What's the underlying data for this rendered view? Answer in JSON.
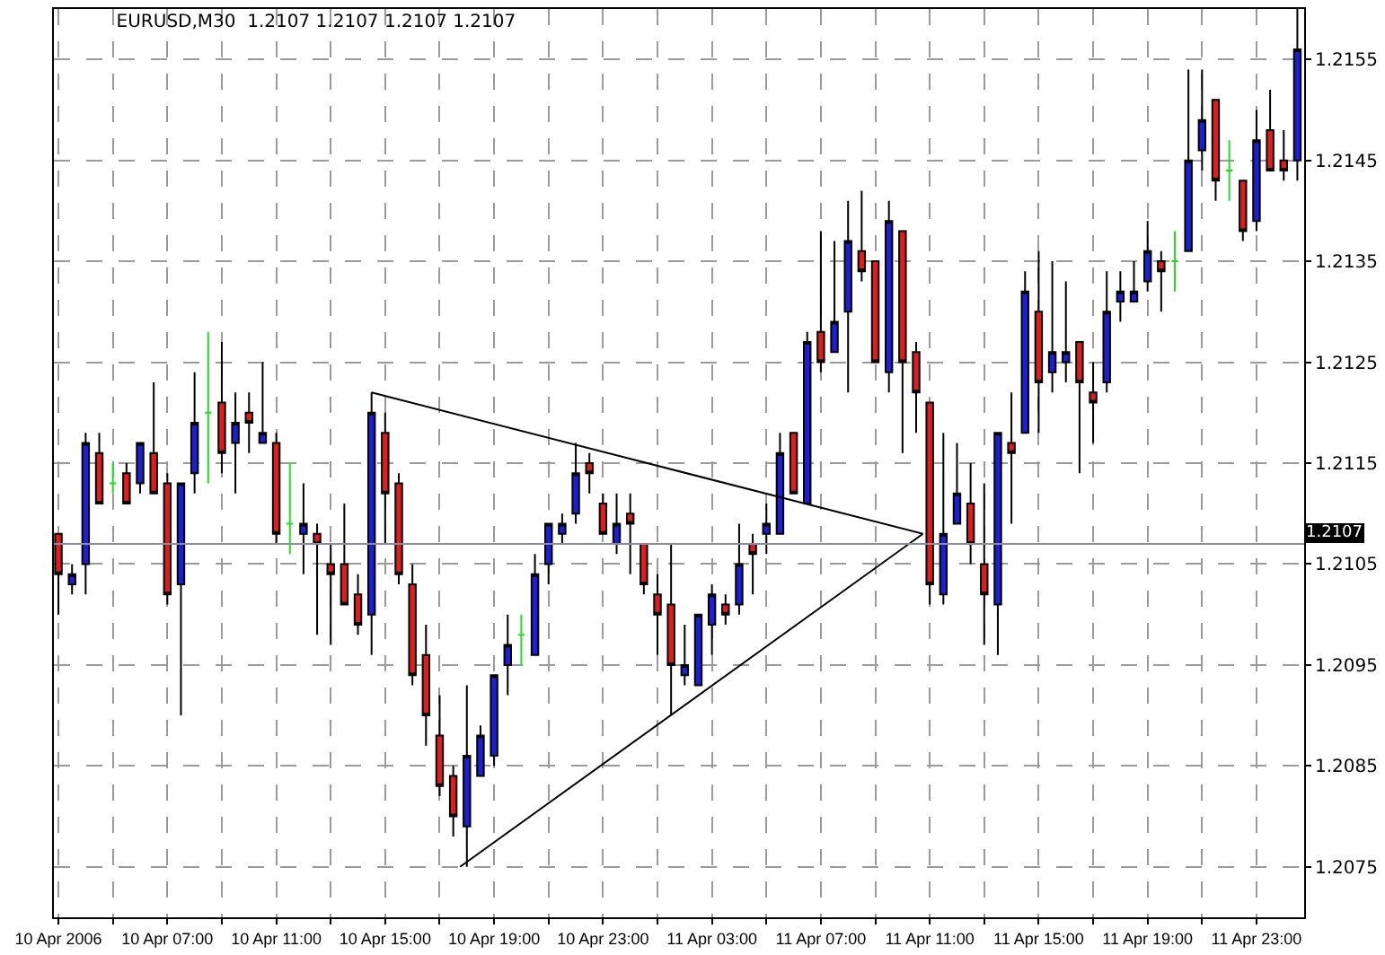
{
  "chart_data": {
    "type": "candlestick",
    "title": "EURUSD,M30  1.2107 1.2107 1.2107 1.2107",
    "x": [
      "2006-04-10T03:00",
      "2006-04-10T03:30",
      "2006-04-10T04:00",
      "2006-04-10T04:30",
      "2006-04-10T05:00",
      "2006-04-10T05:30",
      "2006-04-10T06:00",
      "2006-04-10T06:30",
      "2006-04-10T07:00",
      "2006-04-10T07:30",
      "2006-04-10T08:00",
      "2006-04-10T08:30",
      "2006-04-10T09:00",
      "2006-04-10T09:30",
      "2006-04-10T10:00",
      "2006-04-10T10:30",
      "2006-04-10T11:00",
      "2006-04-10T11:30",
      "2006-04-10T12:00",
      "2006-04-10T12:30",
      "2006-04-10T13:00",
      "2006-04-10T13:30",
      "2006-04-10T14:00",
      "2006-04-10T14:30",
      "2006-04-10T15:00",
      "2006-04-10T15:30",
      "2006-04-10T16:00",
      "2006-04-10T16:30",
      "2006-04-10T17:00",
      "2006-04-10T17:30",
      "2006-04-10T18:00",
      "2006-04-10T18:30",
      "2006-04-10T19:00",
      "2006-04-10T19:30",
      "2006-04-10T20:00",
      "2006-04-10T20:30",
      "2006-04-10T21:00",
      "2006-04-10T21:30",
      "2006-04-10T22:00",
      "2006-04-10T22:30",
      "2006-04-10T23:00",
      "2006-04-10T23:30",
      "2006-04-11T00:00",
      "2006-04-11T00:30",
      "2006-04-11T01:00",
      "2006-04-11T01:30",
      "2006-04-11T02:00",
      "2006-04-11T02:30",
      "2006-04-11T03:00",
      "2006-04-11T03:30",
      "2006-04-11T04:00",
      "2006-04-11T04:30",
      "2006-04-11T05:00",
      "2006-04-11T05:30",
      "2006-04-11T06:00",
      "2006-04-11T06:30",
      "2006-04-11T07:00",
      "2006-04-11T07:30",
      "2006-04-11T08:00",
      "2006-04-11T08:30",
      "2006-04-11T09:00",
      "2006-04-11T09:30",
      "2006-04-11T10:00",
      "2006-04-11T10:30",
      "2006-04-11T11:00",
      "2006-04-11T11:30",
      "2006-04-11T12:00",
      "2006-04-11T12:30",
      "2006-04-11T13:00",
      "2006-04-11T13:30",
      "2006-04-11T14:00",
      "2006-04-11T14:30",
      "2006-04-11T15:00",
      "2006-04-11T15:30",
      "2006-04-11T16:00",
      "2006-04-11T16:30",
      "2006-04-11T17:00",
      "2006-04-11T17:30",
      "2006-04-11T18:00",
      "2006-04-11T18:30",
      "2006-04-11T19:00",
      "2006-04-11T19:30",
      "2006-04-11T20:00",
      "2006-04-11T20:30",
      "2006-04-11T21:00",
      "2006-04-11T21:30",
      "2006-04-11T22:00",
      "2006-04-11T22:30",
      "2006-04-11T23:00",
      "2006-04-11T23:30",
      "2006-04-12T00:00",
      "2006-04-12T00:30"
    ],
    "ohlc": [
      [
        1.2108,
        1.2108,
        1.21,
        1.2104
      ],
      [
        1.2103,
        1.2105,
        1.2102,
        1.2104
      ],
      [
        1.2105,
        1.2118,
        1.2102,
        1.2117
      ],
      [
        1.2116,
        1.2118,
        1.2111,
        1.2111
      ],
      [
        1.2113,
        1.2115,
        1.2112,
        1.2113
      ],
      [
        1.2114,
        1.2115,
        1.2111,
        1.2111
      ],
      [
        1.2113,
        1.2117,
        1.2112,
        1.2117
      ],
      [
        1.2116,
        1.2123,
        1.2112,
        1.2112
      ],
      [
        1.2113,
        1.2114,
        1.2101,
        1.2102
      ],
      [
        1.2103,
        1.2113,
        1.209,
        1.2113
      ],
      [
        1.2114,
        1.2124,
        1.2112,
        1.2119
      ],
      [
        1.212,
        1.2128,
        1.2113,
        1.212
      ],
      [
        1.2121,
        1.2127,
        1.2114,
        1.2116
      ],
      [
        1.2117,
        1.2122,
        1.2112,
        1.2119
      ],
      [
        1.212,
        1.2122,
        1.2116,
        1.2119
      ],
      [
        1.2117,
        1.2125,
        1.2117,
        1.2118
      ],
      [
        1.2117,
        1.2118,
        1.2107,
        1.2108
      ],
      [
        1.2109,
        1.2115,
        1.2106,
        1.2109
      ],
      [
        1.2108,
        1.2113,
        1.2104,
        1.2109
      ],
      [
        1.2108,
        1.2109,
        1.2098,
        1.2107
      ],
      [
        1.2105,
        1.2107,
        1.2097,
        1.2104
      ],
      [
        1.2105,
        1.2111,
        1.2101,
        1.2101
      ],
      [
        1.2102,
        1.2104,
        1.2098,
        1.2099
      ],
      [
        1.21,
        1.2122,
        1.2096,
        1.212
      ],
      [
        1.2118,
        1.212,
        1.2107,
        1.2112
      ],
      [
        1.2113,
        1.2114,
        1.2103,
        1.2104
      ],
      [
        1.2103,
        1.2105,
        1.2093,
        1.2094
      ],
      [
        1.2096,
        1.2099,
        1.2087,
        1.209
      ],
      [
        1.2088,
        1.2092,
        1.2082,
        1.2083
      ],
      [
        1.2084,
        1.2085,
        1.2078,
        1.208
      ],
      [
        1.2079,
        1.2093,
        1.2075,
        1.2086
      ],
      [
        1.2084,
        1.2089,
        1.2084,
        1.2088
      ],
      [
        1.2086,
        1.2094,
        1.2085,
        1.2094
      ],
      [
        1.2095,
        1.21,
        1.2092,
        1.2097
      ],
      [
        1.2098,
        1.21,
        1.2095,
        1.2098
      ],
      [
        1.2096,
        1.2106,
        1.2096,
        1.2104
      ],
      [
        1.2105,
        1.2109,
        1.2103,
        1.2109
      ],
      [
        1.2108,
        1.211,
        1.2107,
        1.2109
      ],
      [
        1.211,
        1.2117,
        1.2109,
        1.2114
      ],
      [
        1.2115,
        1.2116,
        1.2112,
        1.2114
      ],
      [
        1.2111,
        1.2112,
        1.2108,
        1.2108
      ],
      [
        1.2107,
        1.2112,
        1.2106,
        1.2109
      ],
      [
        1.211,
        1.2112,
        1.2104,
        1.2109
      ],
      [
        1.2107,
        1.2107,
        1.2102,
        1.2103
      ],
      [
        1.2102,
        1.2104,
        1.2096,
        1.21
      ],
      [
        1.2101,
        1.2107,
        1.209,
        1.2095
      ],
      [
        1.2094,
        1.2099,
        1.2093,
        1.2095
      ],
      [
        1.2093,
        1.21,
        1.2093,
        1.21
      ],
      [
        1.2099,
        1.2103,
        1.2096,
        1.2102
      ],
      [
        1.2101,
        1.2102,
        1.2099,
        1.21
      ],
      [
        1.2101,
        1.2109,
        1.21,
        1.2105
      ],
      [
        1.2107,
        1.2108,
        1.2102,
        1.2106
      ],
      [
        1.2108,
        1.2111,
        1.2106,
        1.2109
      ],
      [
        1.2108,
        1.2118,
        1.2108,
        1.2116
      ],
      [
        1.2118,
        1.2118,
        1.2112,
        1.2112
      ],
      [
        1.2111,
        1.2128,
        1.2111,
        1.2127
      ],
      [
        1.2128,
        1.2138,
        1.2124,
        1.2125
      ],
      [
        1.2126,
        1.2137,
        1.2126,
        1.2129
      ],
      [
        1.213,
        1.2141,
        1.2122,
        1.2137
      ],
      [
        1.2136,
        1.2142,
        1.2133,
        1.2134
      ],
      [
        1.2135,
        1.2135,
        1.2125,
        1.2125
      ],
      [
        1.2124,
        1.2141,
        1.2122,
        1.2139
      ],
      [
        1.2138,
        1.2138,
        1.2116,
        1.2125
      ],
      [
        1.2126,
        1.2127,
        1.2118,
        1.2122
      ],
      [
        1.2121,
        1.2121,
        1.2101,
        1.2103
      ],
      [
        1.2102,
        1.2118,
        1.2101,
        1.2108
      ],
      [
        1.2109,
        1.2117,
        1.2109,
        1.2112
      ],
      [
        1.2111,
        1.2115,
        1.2105,
        1.2107
      ],
      [
        1.2105,
        1.2113,
        1.2097,
        1.2102
      ],
      [
        1.2101,
        1.2118,
        1.2096,
        1.2118
      ],
      [
        1.2117,
        1.2122,
        1.2109,
        1.2116
      ],
      [
        1.2118,
        1.2134,
        1.2118,
        1.2132
      ],
      [
        1.213,
        1.2136,
        1.2118,
        1.2123
      ],
      [
        1.2124,
        1.2135,
        1.2122,
        1.2126
      ],
      [
        1.2125,
        1.2133,
        1.2123,
        1.2126
      ],
      [
        1.2127,
        1.2127,
        1.2114,
        1.2123
      ],
      [
        1.2122,
        1.2125,
        1.2117,
        1.2121
      ],
      [
        1.2123,
        1.2134,
        1.2122,
        1.213
      ],
      [
        1.2131,
        1.2134,
        1.2129,
        1.2132
      ],
      [
        1.2131,
        1.2135,
        1.2131,
        1.2132
      ],
      [
        1.2133,
        1.2139,
        1.2132,
        1.2136
      ],
      [
        1.2135,
        1.2136,
        1.213,
        1.2134
      ],
      [
        1.2135,
        1.2138,
        1.2132,
        1.2135
      ],
      [
        1.2136,
        1.2154,
        1.2136,
        1.2145
      ],
      [
        1.2146,
        1.2154,
        1.2144,
        1.2149
      ],
      [
        1.2151,
        1.2151,
        1.2141,
        1.2143
      ],
      [
        1.2144,
        1.2147,
        1.2141,
        1.2144
      ],
      [
        1.2143,
        1.2143,
        1.2137,
        1.2138
      ],
      [
        1.2139,
        1.215,
        1.2138,
        1.2147
      ],
      [
        1.2148,
        1.2152,
        1.2144,
        1.2144
      ],
      [
        1.2145,
        1.2148,
        1.2143,
        1.2144
      ],
      [
        1.2145,
        1.216,
        1.2143,
        1.2156
      ]
    ],
    "colors": [
      "#dc1e1e",
      "#1e1ed2",
      "#1e1ed2",
      "#dc1e1e",
      "#22dd22",
      "#dc1e1e",
      "#1e1ed2",
      "#dc1e1e",
      "#dc1e1e",
      "#1e1ed2",
      "#1e1ed2",
      "#22dd22",
      "#dc1e1e",
      "#1e1ed2",
      "#dc1e1e",
      "#1e1ed2",
      "#dc1e1e",
      "#22dd22",
      "#1e1ed2",
      "#dc1e1e",
      "#dc1e1e",
      "#dc1e1e",
      "#dc1e1e",
      "#1e1ed2",
      "#dc1e1e",
      "#dc1e1e",
      "#dc1e1e",
      "#dc1e1e",
      "#dc1e1e",
      "#dc1e1e",
      "#1e1ed2",
      "#1e1ed2",
      "#1e1ed2",
      "#1e1ed2",
      "#22dd22",
      "#1e1ed2",
      "#1e1ed2",
      "#1e1ed2",
      "#1e1ed2",
      "#dc1e1e",
      "#dc1e1e",
      "#1e1ed2",
      "#dc1e1e",
      "#dc1e1e",
      "#dc1e1e",
      "#dc1e1e",
      "#1e1ed2",
      "#1e1ed2",
      "#1e1ed2",
      "#dc1e1e",
      "#1e1ed2",
      "#dc1e1e",
      "#1e1ed2",
      "#1e1ed2",
      "#dc1e1e",
      "#1e1ed2",
      "#dc1e1e",
      "#1e1ed2",
      "#1e1ed2",
      "#dc1e1e",
      "#dc1e1e",
      "#1e1ed2",
      "#dc1e1e",
      "#dc1e1e",
      "#dc1e1e",
      "#1e1ed2",
      "#1e1ed2",
      "#dc1e1e",
      "#dc1e1e",
      "#1e1ed2",
      "#dc1e1e",
      "#1e1ed2",
      "#dc1e1e",
      "#1e1ed2",
      "#1e1ed2",
      "#dc1e1e",
      "#dc1e1e",
      "#1e1ed2",
      "#1e1ed2",
      "#1e1ed2",
      "#1e1ed2",
      "#dc1e1e",
      "#22dd22",
      "#1e1ed2",
      "#1e1ed2",
      "#dc1e1e",
      "#22dd22",
      "#dc1e1e",
      "#1e1ed2",
      "#dc1e1e",
      "#dc1e1e",
      "#1e1ed2"
    ],
    "series": [
      {
        "type": "line",
        "color": "#000000",
        "x": [
          "2006-04-10T14:30",
          "2006-04-11T10:45"
        ],
        "values": [
          1.2122,
          1.2108
        ]
      },
      {
        "type": "line",
        "color": "#000000",
        "x": [
          "2006-04-10T17:45",
          "2006-04-11T10:45"
        ],
        "values": [
          1.2075,
          1.2108
        ]
      }
    ],
    "xlim": [
      "2006-04-10T02:50",
      "2006-04-12T00:45"
    ],
    "xticks": [
      {
        "value": "2006-04-10T03:00",
        "label": "10 Apr 2006"
      },
      {
        "value": "2006-04-10T05:00",
        "label": null
      },
      {
        "value": "2006-04-10T07:00",
        "label": "10 Apr 07:00"
      },
      {
        "value": "2006-04-10T09:00",
        "label": null
      },
      {
        "value": "2006-04-10T11:00",
        "label": "10 Apr 11:00"
      },
      {
        "value": "2006-04-10T13:00",
        "label": null
      },
      {
        "value": "2006-04-10T15:00",
        "label": "10 Apr 15:00"
      },
      {
        "value": "2006-04-10T17:00",
        "label": null
      },
      {
        "value": "2006-04-10T19:00",
        "label": "10 Apr 19:00"
      },
      {
        "value": "2006-04-10T21:00",
        "label": null
      },
      {
        "value": "2006-04-10T23:00",
        "label": "10 Apr 23:00"
      },
      {
        "value": "2006-04-11T01:00",
        "label": null
      },
      {
        "value": "2006-04-11T03:00",
        "label": "11 Apr 03:00"
      },
      {
        "value": "2006-04-11T05:00",
        "label": null
      },
      {
        "value": "2006-04-11T07:00",
        "label": "11 Apr 07:00"
      },
      {
        "value": "2006-04-11T09:00",
        "label": null
      },
      {
        "value": "2006-04-11T11:00",
        "label": "11 Apr 11:00"
      },
      {
        "value": "2006-04-11T13:00",
        "label": null
      },
      {
        "value": "2006-04-11T15:00",
        "label": "11 Apr 15:00"
      },
      {
        "value": "2006-04-11T17:00",
        "label": null
      },
      {
        "value": "2006-04-11T19:00",
        "label": "11 Apr 19:00"
      },
      {
        "value": "2006-04-11T21:00",
        "label": null
      },
      {
        "value": "2006-04-11T23:00",
        "label": "11 Apr 23:00"
      }
    ],
    "ylim": [
      1.207,
      1.216
    ],
    "yticks": [
      1.2075,
      1.2085,
      1.2095,
      1.2105,
      1.2115,
      1.2125,
      1.2135,
      1.2145,
      1.2155
    ],
    "ref_lines": [
      {
        "axis": "y",
        "value": 1.2107,
        "label": "1.2107",
        "color": "#8c8ca0"
      }
    ],
    "grid": true
  }
}
